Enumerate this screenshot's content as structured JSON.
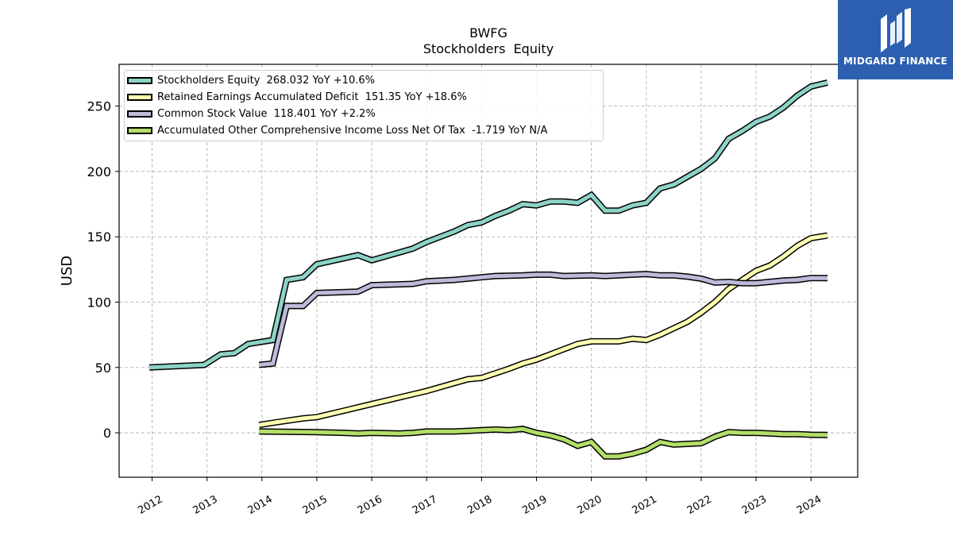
{
  "chart_data": {
    "type": "line",
    "title": "BWFG",
    "subtitle": "Stockholders  Equity",
    "ylabel": "USD",
    "xlabel": "",
    "ylim": [
      -34,
      282
    ],
    "xlim": [
      2011.4,
      2024.85
    ],
    "x_ticks": [
      "2012",
      "2013",
      "2014",
      "2015",
      "2016",
      "2017",
      "2018",
      "2019",
      "2020",
      "2021",
      "2022",
      "2023",
      "2024"
    ],
    "y_ticks": [
      "0",
      "50",
      "100",
      "150",
      "200",
      "250"
    ],
    "grid": true,
    "legend_position": "top-left",
    "series": [
      {
        "name": "Stockholders Equity",
        "legend": "Stockholders Equity  268.032 YoY +10.6%",
        "color": "#8dd3c7",
        "points": [
          [
            2011.95,
            50
          ],
          [
            2012.95,
            52
          ],
          [
            2013.25,
            60
          ],
          [
            2013.5,
            61
          ],
          [
            2013.75,
            68
          ],
          [
            2014.2,
            71
          ],
          [
            2014.45,
            117
          ],
          [
            2014.75,
            119
          ],
          [
            2015.0,
            129
          ],
          [
            2015.75,
            136
          ],
          [
            2016.0,
            132
          ],
          [
            2016.5,
            138
          ],
          [
            2016.75,
            141
          ],
          [
            2017.0,
            146
          ],
          [
            2017.5,
            154
          ],
          [
            2017.75,
            159
          ],
          [
            2018.0,
            161
          ],
          [
            2018.25,
            166
          ],
          [
            2018.5,
            170
          ],
          [
            2018.75,
            175
          ],
          [
            2019.0,
            174
          ],
          [
            2019.25,
            177
          ],
          [
            2019.5,
            177
          ],
          [
            2019.75,
            176
          ],
          [
            2020.0,
            182
          ],
          [
            2020.25,
            170
          ],
          [
            2020.5,
            170
          ],
          [
            2020.75,
            174
          ],
          [
            2021.0,
            176
          ],
          [
            2021.25,
            187
          ],
          [
            2021.5,
            190
          ],
          [
            2021.75,
            196
          ],
          [
            2022.0,
            202
          ],
          [
            2022.25,
            210
          ],
          [
            2022.5,
            225
          ],
          [
            2022.75,
            231
          ],
          [
            2023.0,
            238
          ],
          [
            2023.25,
            242
          ],
          [
            2023.5,
            249
          ],
          [
            2023.75,
            258
          ],
          [
            2024.0,
            265
          ],
          [
            2024.3,
            268
          ]
        ]
      },
      {
        "name": "Retained Earnings Accumulated Deficit",
        "legend": "Retained Earnings Accumulated Deficit  151.35 YoY +18.6%",
        "color": "#ffffb3",
        "points": [
          [
            2013.95,
            6
          ],
          [
            2014.25,
            8
          ],
          [
            2014.75,
            11
          ],
          [
            2015.0,
            12
          ],
          [
            2015.5,
            17
          ],
          [
            2016.0,
            22
          ],
          [
            2016.5,
            27
          ],
          [
            2017.0,
            32
          ],
          [
            2017.5,
            38
          ],
          [
            2017.75,
            41
          ],
          [
            2018.0,
            42
          ],
          [
            2018.5,
            49
          ],
          [
            2018.75,
            53
          ],
          [
            2019.0,
            56
          ],
          [
            2019.25,
            60
          ],
          [
            2019.5,
            64
          ],
          [
            2019.75,
            68
          ],
          [
            2020.0,
            70
          ],
          [
            2020.5,
            70
          ],
          [
            2020.75,
            72
          ],
          [
            2021.0,
            71
          ],
          [
            2021.25,
            75
          ],
          [
            2021.5,
            80
          ],
          [
            2021.75,
            85
          ],
          [
            2022.0,
            92
          ],
          [
            2022.25,
            100
          ],
          [
            2022.5,
            110
          ],
          [
            2022.75,
            117
          ],
          [
            2023.0,
            124
          ],
          [
            2023.25,
            128
          ],
          [
            2023.5,
            135
          ],
          [
            2023.75,
            143
          ],
          [
            2024.0,
            149
          ],
          [
            2024.3,
            151
          ]
        ]
      },
      {
        "name": "Common Stock Value",
        "legend": "Common Stock Value  118.401 YoY +2.2%",
        "color": "#bebada",
        "points": [
          [
            2013.95,
            52
          ],
          [
            2014.2,
            53
          ],
          [
            2014.45,
            97
          ],
          [
            2014.75,
            97
          ],
          [
            2015.0,
            107
          ],
          [
            2015.75,
            108
          ],
          [
            2016.0,
            113
          ],
          [
            2016.75,
            114
          ],
          [
            2017.0,
            116
          ],
          [
            2017.5,
            117
          ],
          [
            2017.75,
            118
          ],
          [
            2018.0,
            119
          ],
          [
            2018.25,
            120
          ],
          [
            2018.75,
            120.5
          ],
          [
            2019.0,
            121
          ],
          [
            2019.25,
            121
          ],
          [
            2019.5,
            120
          ],
          [
            2020.0,
            120.5
          ],
          [
            2020.25,
            120
          ],
          [
            2020.75,
            121
          ],
          [
            2021.0,
            121.5
          ],
          [
            2021.25,
            120.5
          ],
          [
            2021.5,
            120.5
          ],
          [
            2021.75,
            119.5
          ],
          [
            2022.0,
            118
          ],
          [
            2022.25,
            115
          ],
          [
            2022.5,
            115.5
          ],
          [
            2022.75,
            114.5
          ],
          [
            2023.0,
            114.5
          ],
          [
            2023.5,
            116.5
          ],
          [
            2023.75,
            117
          ],
          [
            2024.0,
            118.5
          ],
          [
            2024.3,
            118.4
          ]
        ]
      },
      {
        "name": "Accumulated Other Comprehensive Income Loss Net Of Tax",
        "legend": "Accumulated Other Comprehensive Income Loss Net Of Tax  -1.719 YoY N/A",
        "color": "#b3de69",
        "points": [
          [
            2013.95,
            1
          ],
          [
            2015.0,
            0.5
          ],
          [
            2015.5,
            0
          ],
          [
            2015.75,
            -0.5
          ],
          [
            2016.0,
            0
          ],
          [
            2016.5,
            -0.5
          ],
          [
            2016.75,
            0
          ],
          [
            2017.0,
            1
          ],
          [
            2017.5,
            1
          ],
          [
            2017.75,
            1.5
          ],
          [
            2018.0,
            2
          ],
          [
            2018.25,
            2.5
          ],
          [
            2018.5,
            2
          ],
          [
            2018.75,
            3
          ],
          [
            2019.0,
            0
          ],
          [
            2019.25,
            -2
          ],
          [
            2019.5,
            -5
          ],
          [
            2019.75,
            -10
          ],
          [
            2020.0,
            -7
          ],
          [
            2020.25,
            -18
          ],
          [
            2020.5,
            -18
          ],
          [
            2020.75,
            -16
          ],
          [
            2021.0,
            -13
          ],
          [
            2021.25,
            -7
          ],
          [
            2021.5,
            -9
          ],
          [
            2021.75,
            -8.5
          ],
          [
            2022.0,
            -8
          ],
          [
            2022.25,
            -3
          ],
          [
            2022.5,
            0.5
          ],
          [
            2022.75,
            0
          ],
          [
            2023.0,
            0
          ],
          [
            2023.25,
            -0.5
          ],
          [
            2023.5,
            -1
          ],
          [
            2023.75,
            -1
          ],
          [
            2024.0,
            -1.5
          ],
          [
            2024.3,
            -1.7
          ]
        ]
      }
    ]
  },
  "brand": {
    "name": "MIDGARD FINANCE"
  }
}
